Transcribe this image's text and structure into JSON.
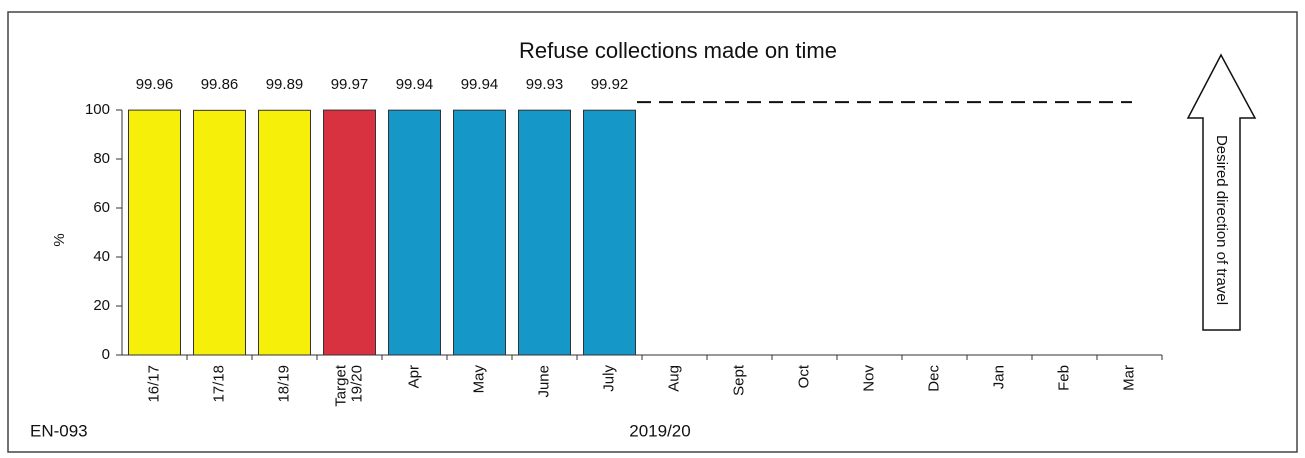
{
  "chart_data": {
    "type": "bar",
    "title": "Refuse collections made on time",
    "categories": [
      "16/17",
      "17/18",
      "18/19",
      "Target 19/20",
      "Apr",
      "May",
      "June",
      "July",
      "Aug",
      "Sept",
      "Oct",
      "Nov",
      "Dec",
      "Jan",
      "Feb",
      "Mar"
    ],
    "values": [
      99.96,
      99.86,
      99.89,
      99.97,
      99.94,
      99.94,
      99.93,
      99.92,
      null,
      null,
      null,
      null,
      null,
      null,
      null,
      null
    ],
    "colors": [
      "#f5ef0a",
      "#f5ef0a",
      "#f5ef0a",
      "#d8313f",
      "#1597c8",
      "#1597c8",
      "#1597c8",
      "#1597c8",
      null,
      null,
      null,
      null,
      null,
      null,
      null,
      null
    ],
    "ylabel": "%",
    "xlabel": "2019/20",
    "code": "EN-093",
    "arrow_label": "Desired direction of travel",
    "ylim": [
      0,
      100
    ],
    "yticks": [
      0,
      20,
      40,
      60,
      80,
      100
    ]
  }
}
